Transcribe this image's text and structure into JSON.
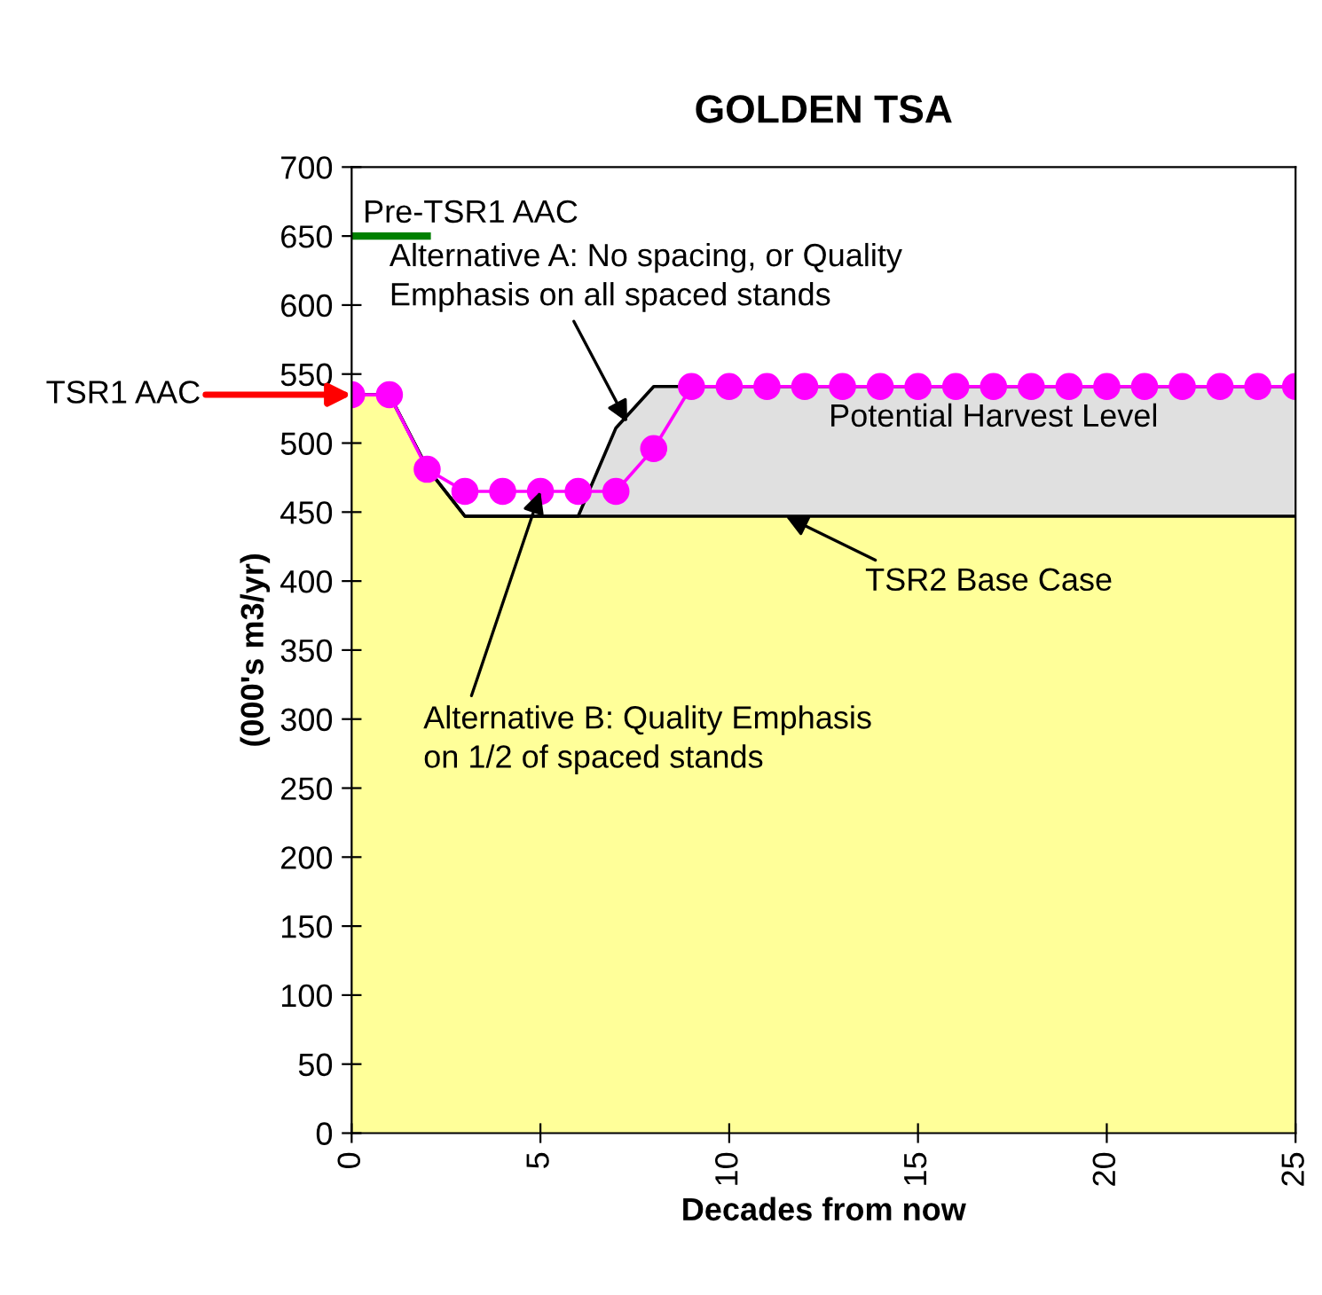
{
  "chart_data": {
    "type": "area",
    "title": "GOLDEN TSA",
    "xlabel": "Decades from now",
    "ylabel": "(000's m3/yr)",
    "x": [
      0,
      1,
      2,
      3,
      4,
      5,
      6,
      7,
      8,
      9,
      10,
      11,
      12,
      13,
      14,
      15,
      16,
      17,
      18,
      19,
      20,
      21,
      22,
      23,
      24,
      25
    ],
    "series": [
      {
        "color": "#e0e0e0",
        "values": [
          535,
          535,
          482,
          447,
          447,
          447,
          447,
          511,
          541,
          541,
          541,
          541,
          541,
          541,
          541,
          541,
          541,
          541,
          541,
          541,
          541,
          541,
          541,
          541,
          541,
          541
        ]
      },
      {
        "color": "#ffff99",
        "values": [
          535,
          535,
          482,
          447,
          447,
          447,
          447,
          447,
          447,
          447,
          447,
          447,
          447,
          447,
          447,
          447,
          447,
          447,
          447,
          447,
          447,
          447,
          447,
          447,
          447,
          447
        ]
      },
      {
        "type": "line",
        "color": "#ff00ff",
        "marker": "circle",
        "values": [
          535,
          535,
          481,
          465,
          465,
          465,
          465,
          465,
          496,
          541,
          541,
          541,
          541,
          541,
          541,
          541,
          541,
          541,
          541,
          541,
          541,
          541,
          541,
          541,
          541,
          541
        ]
      },
      {
        "type": "line",
        "name": "Pre-TSR1 AAC",
        "color": "#008000",
        "marker": "none",
        "x": [
          0,
          2
        ],
        "values": [
          650,
          650
        ]
      }
    ],
    "annotations": [
      {
        "text": "TSR1 AAC",
        "x": 0,
        "y": 535
      },
      {
        "text": "Alternative A: No spacing, or Quality\nEmphasis on all spaced stands",
        "x": 7.3,
        "y": 515
      },
      "Potential Harvest Level",
      {
        "text": "TSR2 Base Case",
        "x": 11.5,
        "y": 447
      },
      {
        "text": "Alternative B: Quality Emphasis\non 1/2 of spaced stands",
        "x": 5,
        "y": 465
      }
    ],
    "xlim": [
      0,
      25
    ],
    "xticks": [
      0,
      5,
      10,
      15,
      20,
      25
    ],
    "ylim": [
      0,
      700
    ],
    "yticks": [
      0,
      50,
      100,
      150,
      200,
      250,
      300,
      350,
      400,
      450,
      500,
      550,
      600,
      650,
      700
    ],
    "grid": false,
    "legend": false
  }
}
